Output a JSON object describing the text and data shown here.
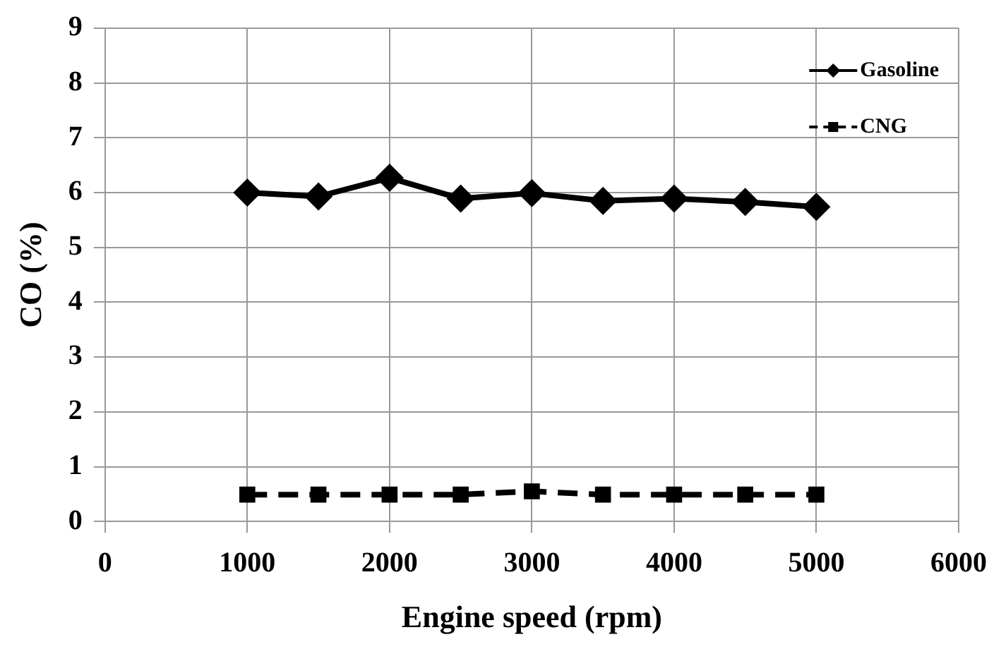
{
  "chart_data": {
    "type": "line",
    "xlabel": "Engine speed (rpm)",
    "ylabel": "CO (%)",
    "x": [
      1000,
      1500,
      2000,
      2500,
      3000,
      3500,
      4000,
      4500,
      5000
    ],
    "series": [
      {
        "name": "Gasoline",
        "color": "#000000",
        "marker": "diamond",
        "line_style": "solid",
        "values": [
          6.0,
          5.93,
          6.27,
          5.89,
          5.99,
          5.85,
          5.89,
          5.83,
          5.74
        ]
      },
      {
        "name": "CNG",
        "color": "#000000",
        "marker": "square",
        "line_style": "dashed",
        "values": [
          0.49,
          0.49,
          0.49,
          0.49,
          0.55,
          0.49,
          0.49,
          0.49,
          0.49
        ]
      }
    ],
    "xlim": [
      0,
      6000
    ],
    "xticks": [
      0,
      1000,
      2000,
      3000,
      4000,
      5000,
      6000
    ],
    "ylim": [
      0,
      9
    ],
    "yticks": [
      0,
      1,
      2,
      3,
      4,
      5,
      6,
      7,
      8,
      9
    ],
    "grid": true,
    "legend": "top right"
  }
}
